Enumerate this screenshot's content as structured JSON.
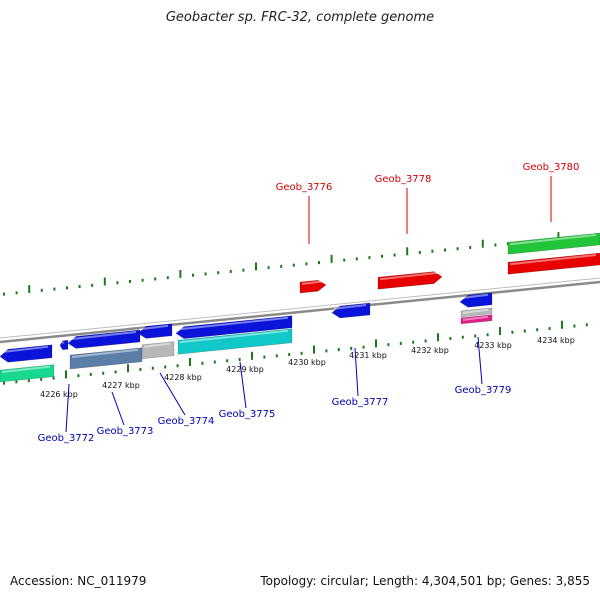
{
  "title": "Geobacter sp. FRC-32, complete genome",
  "footer": {
    "accession": "Accession: NC_011979",
    "summary": "Topology: circular; Length: 4,304,501 bp; Genes: 3,855"
  },
  "colors": {
    "backbone": "#8a8a8a",
    "tick": "#1a7a1a",
    "forward_label": "#d40000",
    "reverse_label": "#0000b0"
  },
  "kbp_labels": [
    "4226 kbp",
    "4227 kbp",
    "4228 kbp",
    "4229 kbp",
    "4230 kbp",
    "4231 kbp",
    "4232 kbp",
    "4233 kbp",
    "4234 kbp"
  ],
  "gene_labels": {
    "forward": [
      "Geob_3776",
      "Geob_3778",
      "Geob_3780"
    ],
    "reverse": [
      "Geob_3772",
      "Geob_3773",
      "Geob_3774",
      "Geob_3775",
      "Geob_3777",
      "Geob_3779"
    ]
  },
  "track_colors": {
    "cds_forward": "#e80000",
    "cds_reverse": "#0a14d8",
    "rna_forward": "#22c43a",
    "rna_reverse_green": "#18d890",
    "rna_cyan": "#10c8c8",
    "steel": "#5a7ea8",
    "gray": "#b8b8b8",
    "pink": "#e0208a"
  }
}
